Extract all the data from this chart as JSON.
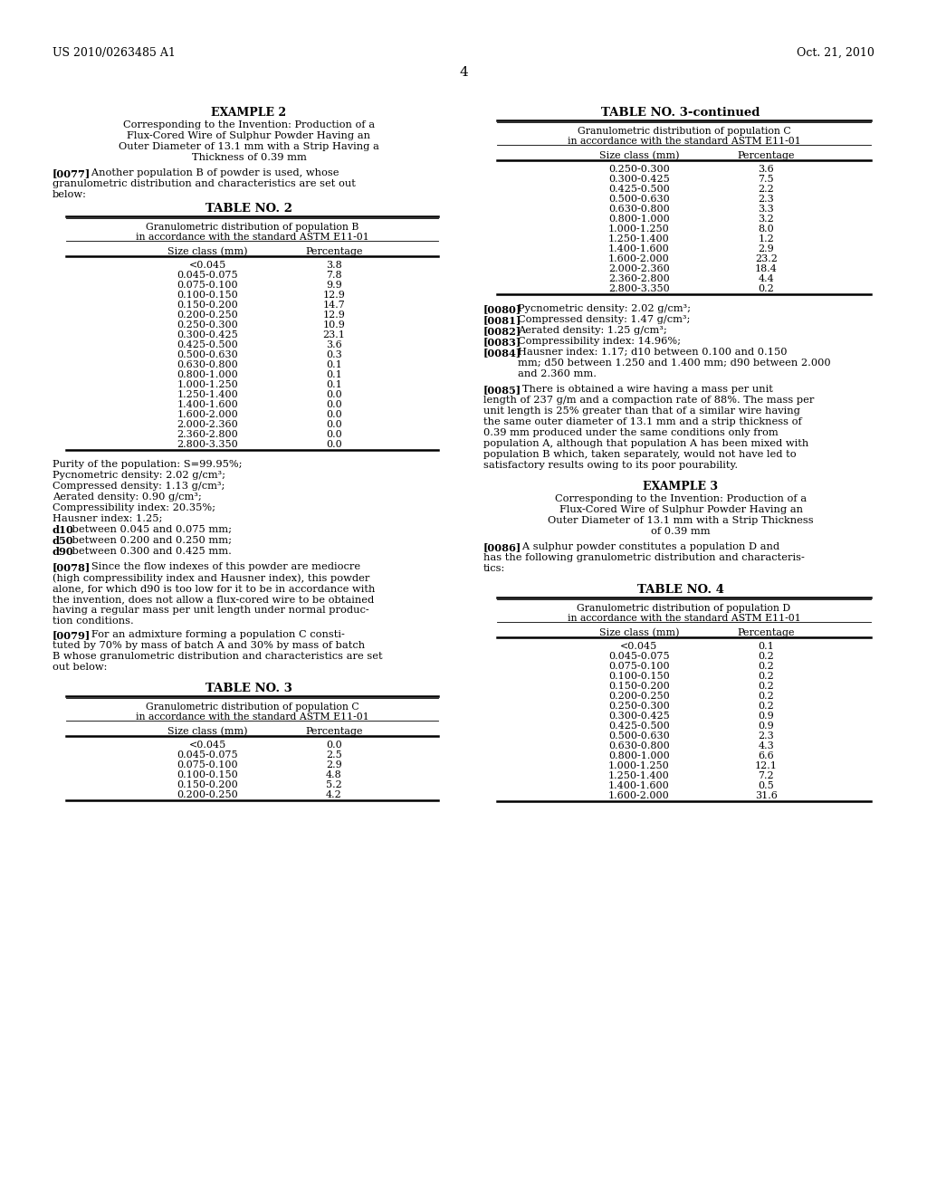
{
  "header_left": "US 2010/0263485 A1",
  "header_right": "Oct. 21, 2010",
  "page_number": "4",
  "example2_title": "EXAMPLE 2",
  "example2_subtitle_lines": [
    "Corresponding to the Invention: Production of a",
    "Flux-Cored Wire of Sulphur Powder Having an",
    "Outer Diameter of 13.1 mm with a Strip Having a",
    "Thickness of 0.39 mm"
  ],
  "para_0077_lines": [
    "[0077]   Another population B of powder is used, whose",
    "granulometric distribution and characteristics are set out",
    "below:"
  ],
  "table2_title": "TABLE NO. 2",
  "table2_subtitle1": "Granulometric distribution of population B",
  "table2_subtitle2": "in accordance with the standard ASTM E11-01",
  "table2_col1": "Size class (mm)",
  "table2_col2": "Percentage",
  "table2_data": [
    [
      "<0.045",
      "3.8"
    ],
    [
      "0.045-0.075",
      "7.8"
    ],
    [
      "0.075-0.100",
      "9.9"
    ],
    [
      "0.100-0.150",
      "12.9"
    ],
    [
      "0.150-0.200",
      "14.7"
    ],
    [
      "0.200-0.250",
      "12.9"
    ],
    [
      "0.250-0.300",
      "10.9"
    ],
    [
      "0.300-0.425",
      "23.1"
    ],
    [
      "0.425-0.500",
      "3.6"
    ],
    [
      "0.500-0.630",
      "0.3"
    ],
    [
      "0.630-0.800",
      "0.1"
    ],
    [
      "0.800-1.000",
      "0.1"
    ],
    [
      "1.000-1.250",
      "0.1"
    ],
    [
      "1.250-1.400",
      "0.0"
    ],
    [
      "1.400-1.600",
      "0.0"
    ],
    [
      "1.600-2.000",
      "0.0"
    ],
    [
      "2.000-2.360",
      "0.0"
    ],
    [
      "2.360-2.800",
      "0.0"
    ],
    [
      "2.800-3.350",
      "0.0"
    ]
  ],
  "pop_b_props_lines": [
    "Purity of the population: S=99.95%;",
    "Pycnometric density: 2.02 g/cm³;",
    "Compressed density: 1.13 g/cm³;",
    "Aerated density: 0.90 g/cm³;",
    "Compressibility index: 20.35%;",
    "Hausner index: 1.25;",
    "d10 between 0.045 and 0.075 mm;",
    "d50 between 0.200 and 0.250 mm;",
    "d90 between 0.300 and 0.425 mm."
  ],
  "pop_b_bold_prefixes": [
    "d10",
    "d50",
    "d90"
  ],
  "para_0078_lines": [
    "[0078]   Since the flow indexes of this powder are mediocre",
    "(high compressibility index and Hausner index), this powder",
    "alone, for which d90 is too low for it to be in accordance with",
    "the invention, does not allow a flux-cored wire to be obtained",
    "having a regular mass per unit length under normal produc-",
    "tion conditions."
  ],
  "para_0079_lines": [
    "[0079]   For an admixture forming a population C consti-",
    "tuted by 70% by mass of batch A and 30% by mass of batch",
    "B whose granulometric distribution and characteristics are set",
    "out below:"
  ],
  "table3_title": "TABLE NO. 3",
  "table3_subtitle1": "Granulometric distribution of population C",
  "table3_subtitle2": "in accordance with the standard ASTM E11-01",
  "table3_col1": "Size class (mm)",
  "table3_col2": "Percentage",
  "table3_data": [
    [
      "<0.045",
      "0.0"
    ],
    [
      "0.045-0.075",
      "2.5"
    ],
    [
      "0.075-0.100",
      "2.9"
    ],
    [
      "0.100-0.150",
      "4.8"
    ],
    [
      "0.150-0.200",
      "5.2"
    ],
    [
      "0.200-0.250",
      "4.2"
    ]
  ],
  "table3cont_title": "TABLE NO. 3-continued",
  "table3cont_subtitle1": "Granulometric distribution of population C",
  "table3cont_subtitle2": "in accordance with the standard ASTM E11-01",
  "table3cont_col1": "Size class (mm)",
  "table3cont_col2": "Percentage",
  "table3cont_data": [
    [
      "0.250-0.300",
      "3.6"
    ],
    [
      "0.300-0.425",
      "7.5"
    ],
    [
      "0.425-0.500",
      "2.2"
    ],
    [
      "0.500-0.630",
      "2.3"
    ],
    [
      "0.630-0.800",
      "3.3"
    ],
    [
      "0.800-1.000",
      "3.2"
    ],
    [
      "1.000-1.250",
      "8.0"
    ],
    [
      "1.250-1.400",
      "1.2"
    ],
    [
      "1.400-1.600",
      "2.9"
    ],
    [
      "1.600-2.000",
      "23.2"
    ],
    [
      "2.000-2.360",
      "18.4"
    ],
    [
      "2.360-2.800",
      "4.4"
    ],
    [
      "2.800-3.350",
      "0.2"
    ]
  ],
  "pop_c_prop_lines": [
    [
      "[0080]",
      "Pycnometric density: 2.02 g/cm³;"
    ],
    [
      "[0081]",
      "Compressed density: 1.47 g/cm³;"
    ],
    [
      "[0082]",
      "Aerated density: 1.25 g/cm³;"
    ],
    [
      "[0083]",
      "Compressibility index: 14.96%;"
    ],
    [
      "[0084]",
      "Hausner index: 1.17; d10 between 0.100 and 0.150"
    ],
    [
      "",
      "mm; d50 between 1.250 and 1.400 mm; d90 between 2.000"
    ],
    [
      "",
      "and 2.360 mm."
    ]
  ],
  "para_0085_lines": [
    "[0085]   There is obtained a wire having a mass per unit",
    "length of 237 g/m and a compaction rate of 88%. The mass per",
    "unit length is 25% greater than that of a similar wire having",
    "the same outer diameter of 13.1 mm and a strip thickness of",
    "0.39 mm produced under the same conditions only from",
    "population A, although that population A has been mixed with",
    "population B which, taken separately, would not have led to",
    "satisfactory results owing to its poor pourability."
  ],
  "example3_title": "EXAMPLE 3",
  "example3_subtitle_lines": [
    "Corresponding to the Invention: Production of a",
    "Flux-Cored Wire of Sulphur Powder Having an",
    "Outer Diameter of 13.1 mm with a Strip Thickness",
    "of 0.39 mm"
  ],
  "para_0086_lines": [
    "[0086]   A sulphur powder constitutes a population D and",
    "has the following granulometric distribution and characteris-",
    "tics:"
  ],
  "table4_title": "TABLE NO. 4",
  "table4_subtitle1": "Granulometric distribution of population D",
  "table4_subtitle2": "in accordance with the standard ASTM E11-01",
  "table4_col1": "Size class (mm)",
  "table4_col2": "Percentage",
  "table4_data": [
    [
      "<0.045",
      "0.1"
    ],
    [
      "0.045-0.075",
      "0.2"
    ],
    [
      "0.075-0.100",
      "0.2"
    ],
    [
      "0.100-0.150",
      "0.2"
    ],
    [
      "0.150-0.200",
      "0.2"
    ],
    [
      "0.200-0.250",
      "0.2"
    ],
    [
      "0.250-0.300",
      "0.2"
    ],
    [
      "0.300-0.425",
      "0.9"
    ],
    [
      "0.425-0.500",
      "0.9"
    ],
    [
      "0.500-0.630",
      "2.3"
    ],
    [
      "0.630-0.800",
      "4.3"
    ],
    [
      "0.800-1.000",
      "6.6"
    ],
    [
      "1.000-1.250",
      "12.1"
    ],
    [
      "1.250-1.400",
      "7.2"
    ],
    [
      "1.400-1.600",
      "0.5"
    ],
    [
      "1.600-2.000",
      "31.6"
    ]
  ]
}
